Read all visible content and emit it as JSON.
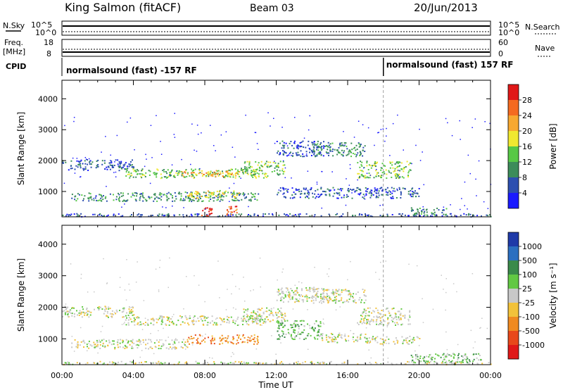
{
  "header": {
    "title": "King Salmon (fitACF)",
    "beam": "Beam 03",
    "date": "20/Jun/2013"
  },
  "top_panels": {
    "nsky_label": "N.Sky",
    "nsky_ticks": [
      "10^5",
      "10^0"
    ],
    "nsearch_label": "N.Search",
    "nsearch_ticks": [
      "10^5",
      "10^0"
    ],
    "freq_label_1": "Freq.",
    "freq_label_2": "[MHz]",
    "freq_ticks": [
      "18",
      "8"
    ],
    "nave_label": "Nave",
    "nave_ticks": [
      "60",
      "0"
    ],
    "cpid_label": "CPID",
    "cpid_segments": [
      {
        "label": "normalsound (fast) -157 RF",
        "start_hour": 0
      },
      {
        "label": "normalsound (fast) 157 RF",
        "start_hour": 18
      }
    ]
  },
  "x_axis": {
    "label": "Time UT",
    "tick_labels": [
      "00:00",
      "04:00",
      "08:00",
      "12:00",
      "16:00",
      "20:00",
      "00:00"
    ],
    "range_hours": [
      0,
      24
    ]
  },
  "y_axis": {
    "label": "Slant Range [km]",
    "tick_labels": [
      "1000",
      "2000",
      "3000",
      "4000"
    ],
    "tick_values": [
      1000,
      2000,
      3000,
      4000
    ],
    "range_km": [
      180,
      4600
    ]
  },
  "power_colorbar": {
    "label": "Power [dB]",
    "tick_labels": [
      "4",
      "8",
      "12",
      "16",
      "20",
      "24",
      "28"
    ],
    "colors": [
      "#1a1aff",
      "#2d4fb0",
      "#3c8c5a",
      "#57c846",
      "#f0e830",
      "#f7a830",
      "#f46a20",
      "#e01818"
    ]
  },
  "velocity_colorbar": {
    "label": "Velocity [m s⁻¹]",
    "tick_labels": [
      "1000",
      "500",
      "100",
      "25",
      "-25",
      "-100",
      "-500",
      "-1000"
    ],
    "colors": [
      "#1f3aa8",
      "#2b6fc0",
      "#3a8a4a",
      "#62c843",
      "#c8c8c8",
      "#f2c23a",
      "#f08a20",
      "#e8481a",
      "#e01818"
    ]
  },
  "chart_data": [
    {
      "type": "heatmap",
      "title": "Power [dB]",
      "xlabel": "Time UT",
      "ylabel": "Slant Range [km]",
      "xlim": [
        0,
        24
      ],
      "ylim": [
        180,
        4600
      ],
      "bands": [
        {
          "t0": 0.0,
          "t1": 4.0,
          "r0": 1700,
          "r1": 2050,
          "level": 1
        },
        {
          "t0": 3.5,
          "t1": 11.5,
          "r0": 1450,
          "r1": 1750,
          "level": 3
        },
        {
          "t0": 6.5,
          "t1": 10.0,
          "r0": 1500,
          "r1": 1700,
          "level": 5
        },
        {
          "t0": 10.0,
          "t1": 12.5,
          "r0": 1550,
          "r1": 2000,
          "level": 3
        },
        {
          "t0": 12.0,
          "t1": 15.0,
          "r0": 2150,
          "r1": 2650,
          "level": 1
        },
        {
          "t0": 14.0,
          "t1": 17.0,
          "r0": 2150,
          "r1": 2600,
          "level": 2
        },
        {
          "t0": 16.5,
          "t1": 19.5,
          "r0": 1450,
          "r1": 2000,
          "level": 3
        },
        {
          "t0": 0.5,
          "t1": 11.0,
          "r0": 700,
          "r1": 1000,
          "level": 2
        },
        {
          "t0": 7.0,
          "t1": 10.0,
          "r0": 800,
          "r1": 1050,
          "level": 4
        },
        {
          "t0": 12.0,
          "t1": 20.0,
          "r0": 800,
          "r1": 1150,
          "level": 1
        },
        {
          "t0": 0.0,
          "t1": 24.0,
          "r0": 200,
          "r1": 300,
          "level": 1
        },
        {
          "t0": 7.8,
          "t1": 8.4,
          "r0": 200,
          "r1": 500,
          "level": 7
        },
        {
          "t0": 9.2,
          "t1": 9.8,
          "r0": 250,
          "r1": 550,
          "level": 6
        },
        {
          "t0": 19.5,
          "t1": 21.5,
          "r0": 250,
          "r1": 500,
          "level": 2
        }
      ]
    },
    {
      "type": "heatmap",
      "title": "Velocity [m s⁻¹]",
      "xlabel": "Time UT",
      "ylabel": "Slant Range [km]",
      "xlim": [
        0,
        24
      ],
      "ylim": [
        180,
        4600
      ],
      "bands": [
        {
          "t0": 0.0,
          "t1": 4.0,
          "r0": 1700,
          "r1": 2050,
          "level": 4
        },
        {
          "t0": 3.5,
          "t1": 11.5,
          "r0": 1450,
          "r1": 1750,
          "level": 4
        },
        {
          "t0": 10.0,
          "t1": 12.5,
          "r0": 1550,
          "r1": 2000,
          "level": 4
        },
        {
          "t0": 12.0,
          "t1": 15.0,
          "r0": 2150,
          "r1": 2650,
          "level": 4
        },
        {
          "t0": 14.0,
          "t1": 17.0,
          "r0": 2150,
          "r1": 2600,
          "level": 4
        },
        {
          "t0": 16.5,
          "t1": 19.5,
          "r0": 1450,
          "r1": 2000,
          "level": 4
        },
        {
          "t0": 0.5,
          "t1": 7.0,
          "r0": 700,
          "r1": 1000,
          "level": 4
        },
        {
          "t0": 7.0,
          "t1": 11.0,
          "r0": 850,
          "r1": 1150,
          "level": 6
        },
        {
          "t0": 12.0,
          "t1": 14.5,
          "r0": 1000,
          "r1": 1600,
          "level": 3
        },
        {
          "t0": 14.5,
          "t1": 17.0,
          "r0": 900,
          "r1": 1200,
          "level": 4
        },
        {
          "t0": 17.0,
          "t1": 20.0,
          "r0": 850,
          "r1": 1100,
          "level": 4
        },
        {
          "t0": 19.5,
          "t1": 23.5,
          "r0": 250,
          "r1": 550,
          "level": 3
        },
        {
          "t0": 0.0,
          "t1": 24.0,
          "r0": 200,
          "r1": 300,
          "level": 4
        }
      ]
    }
  ]
}
